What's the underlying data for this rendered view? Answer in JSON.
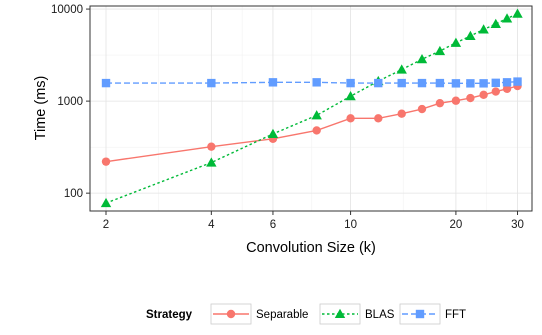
{
  "chart_data": {
    "type": "line",
    "title": "",
    "xlabel": "Convolution Size (k)",
    "ylabel": "Time (ms)",
    "x_scale": "log",
    "y_scale": "log",
    "xlim": [
      1.8,
      33
    ],
    "ylim": [
      64,
      10800
    ],
    "x_ticks": [
      2,
      4,
      6,
      10,
      20,
      30
    ],
    "x_tick_labels": [
      "2",
      "4",
      "6",
      "10",
      "20",
      "30"
    ],
    "y_ticks": [
      100,
      1000,
      10000
    ],
    "y_tick_labels": [
      "100",
      "1000",
      "10000"
    ],
    "grid": true,
    "legend_title": "Strategy",
    "legend_position": "bottom",
    "series": [
      {
        "name": "Separable",
        "color": "#F8766D",
        "line_style": "solid",
        "marker": "circle",
        "x": [
          2,
          4,
          6,
          8,
          10,
          12,
          14,
          16,
          18,
          20,
          22,
          24,
          26,
          28,
          30
        ],
        "y": [
          220,
          320,
          390,
          480,
          650,
          650,
          730,
          820,
          950,
          1010,
          1080,
          1170,
          1270,
          1360,
          1460
        ]
      },
      {
        "name": "BLAS",
        "color": "#00BA38",
        "line_style": "dotted",
        "marker": "triangle",
        "x": [
          2,
          4,
          6,
          8,
          10,
          12,
          14,
          16,
          18,
          20,
          22,
          24,
          26,
          28,
          30
        ],
        "y": [
          78,
          215,
          440,
          700,
          1130,
          1650,
          2200,
          2850,
          3500,
          4300,
          5100,
          6000,
          6900,
          7900,
          8900
        ]
      },
      {
        "name": "FFT",
        "color": "#619CFF",
        "line_style": "dashed",
        "marker": "square",
        "x": [
          2,
          4,
          6,
          8,
          10,
          12,
          14,
          16,
          18,
          20,
          22,
          24,
          26,
          28,
          30
        ],
        "y": [
          1570,
          1570,
          1600,
          1600,
          1570,
          1570,
          1570,
          1570,
          1570,
          1560,
          1560,
          1560,
          1580,
          1600,
          1630
        ]
      }
    ]
  }
}
